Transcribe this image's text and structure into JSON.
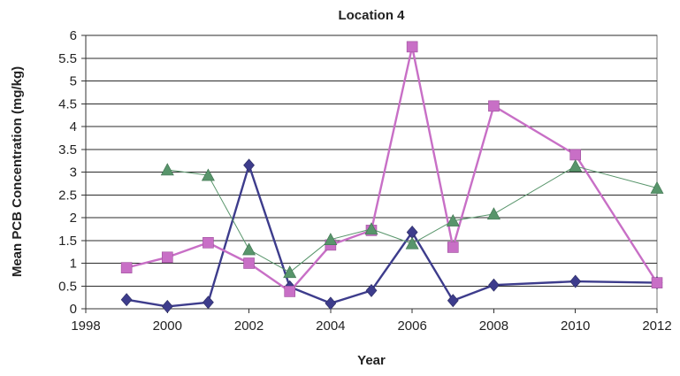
{
  "chart_data": {
    "type": "line",
    "title": "Location 4",
    "xlabel": "Year",
    "ylabel": "Mean PCB Concentration (mg/kg)",
    "xlim": [
      1998,
      2012
    ],
    "ylim": [
      0,
      6
    ],
    "xticks": [
      "1998",
      "2000",
      "2002",
      "2004",
      "2006",
      "2008",
      "2010",
      "2012"
    ],
    "yticks": [
      "0",
      "0.5",
      "1",
      "1.5",
      "2",
      "2.5",
      "3",
      "3.5",
      "4",
      "4.5",
      "5",
      "5.5",
      "6"
    ],
    "grid": true,
    "legend": "none",
    "series": [
      {
        "marker": "diamond",
        "color": "#3d3c8c",
        "x": [
          1999,
          2000,
          2001,
          2002,
          2003,
          2004,
          2005,
          2006,
          2007,
          2008,
          2010,
          2012
        ],
        "y": [
          0.2,
          0.05,
          0.14,
          3.15,
          0.48,
          0.12,
          0.4,
          1.68,
          0.18,
          0.52,
          0.6,
          0.57
        ]
      },
      {
        "marker": "square",
        "color": "#c86fc6",
        "x": [
          1999,
          2000,
          2001,
          2002,
          2003,
          2004,
          2005,
          2006,
          2007,
          2008,
          2010,
          2012
        ],
        "y": [
          0.9,
          1.13,
          1.45,
          1.0,
          0.38,
          1.4,
          1.72,
          5.75,
          1.35,
          4.45,
          3.38,
          0.57
        ]
      },
      {
        "marker": "triangle",
        "color": "#58956b",
        "x": [
          2000,
          2001,
          2002,
          2003,
          2004,
          2005,
          2006,
          2007,
          2008,
          2010,
          2012
        ],
        "y": [
          3.05,
          2.93,
          1.3,
          0.8,
          1.52,
          1.75,
          1.43,
          1.93,
          2.08,
          3.13,
          2.65
        ]
      }
    ]
  }
}
